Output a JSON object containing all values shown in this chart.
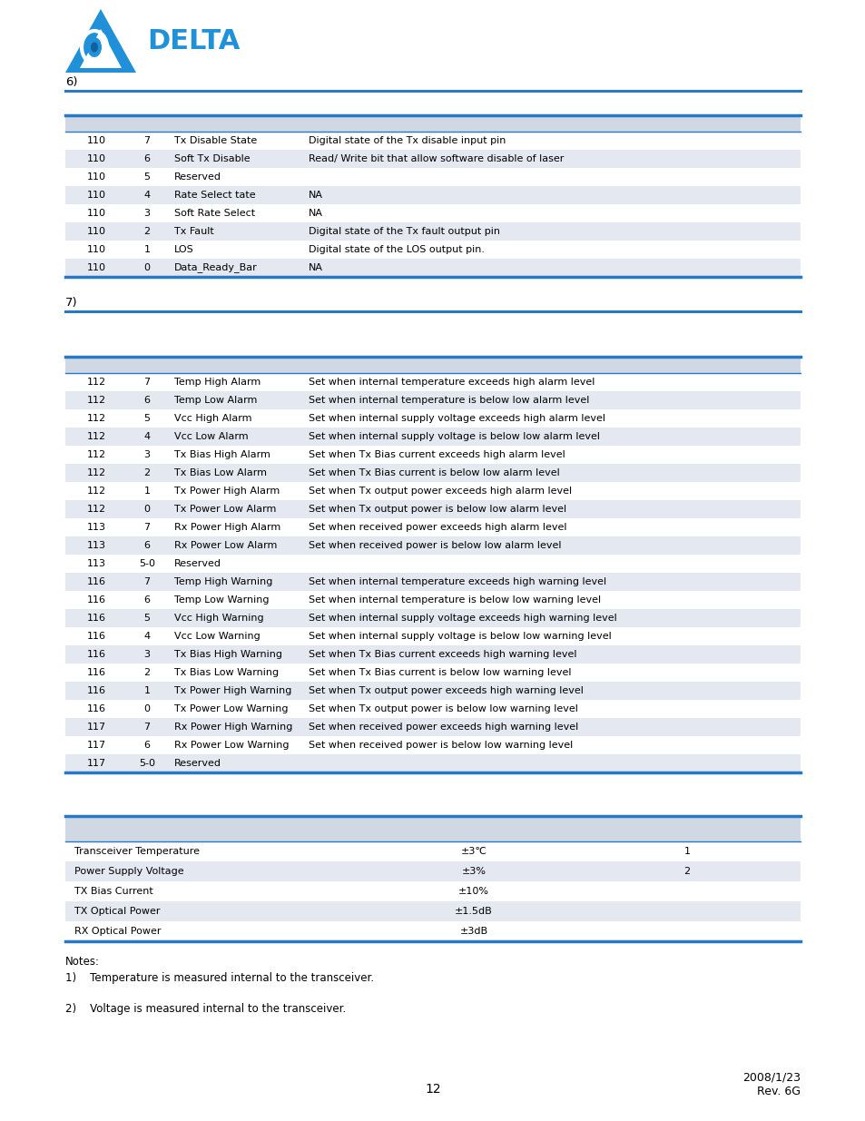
{
  "blue_line_color": "#2878c8",
  "table_header_bg": "#d0d8e4",
  "table_row_alt_bg": "#e4e8f0",
  "table_row_white": "#ffffff",
  "table_border_color": "#2878c8",
  "delta_blue": "#2090d8",
  "table1_rows": [
    [
      "110",
      "7",
      "Tx Disable State",
      "Digital state of the Tx disable input pin"
    ],
    [
      "110",
      "6",
      "Soft Tx Disable",
      "Read/ Write bit that allow software disable of laser"
    ],
    [
      "110",
      "5",
      "Reserved",
      ""
    ],
    [
      "110",
      "4",
      "Rate Select tate",
      "NA"
    ],
    [
      "110",
      "3",
      "Soft Rate Select",
      "NA"
    ],
    [
      "110",
      "2",
      "Tx Fault",
      "Digital state of the Tx fault output pin"
    ],
    [
      "110",
      "1",
      "LOS",
      "Digital state of the LOS output pin."
    ],
    [
      "110",
      "0",
      "Data_Ready_Bar",
      "NA"
    ]
  ],
  "table2_rows": [
    [
      "112",
      "7",
      "Temp High Alarm",
      "Set when internal temperature exceeds high alarm level"
    ],
    [
      "112",
      "6",
      "Temp Low Alarm",
      "Set when internal temperature is below low alarm level"
    ],
    [
      "112",
      "5",
      "Vcc High Alarm",
      "Set when internal supply voltage exceeds high alarm level"
    ],
    [
      "112",
      "4",
      "Vcc Low Alarm",
      "Set when internal supply voltage is below low alarm level"
    ],
    [
      "112",
      "3",
      "Tx Bias High Alarm",
      "Set when Tx Bias current exceeds high alarm level"
    ],
    [
      "112",
      "2",
      "Tx Bias Low Alarm",
      "Set when Tx Bias current is below low alarm level"
    ],
    [
      "112",
      "1",
      "Tx Power High Alarm",
      "Set when Tx output power exceeds high alarm level"
    ],
    [
      "112",
      "0",
      "Tx Power Low Alarm",
      "Set when Tx output power is below low alarm level"
    ],
    [
      "113",
      "7",
      "Rx Power High Alarm",
      "Set when received power exceeds high alarm level"
    ],
    [
      "113",
      "6",
      "Rx Power Low Alarm",
      "Set when received power is below low alarm level"
    ],
    [
      "113",
      "5-0",
      "Reserved",
      ""
    ],
    [
      "116",
      "7",
      "Temp High Warning",
      "Set when internal temperature exceeds high warning level"
    ],
    [
      "116",
      "6",
      "Temp Low Warning",
      "Set when internal temperature is below low warning level"
    ],
    [
      "116",
      "5",
      "Vcc High Warning",
      "Set when internal supply voltage exceeds high warning level"
    ],
    [
      "116",
      "4",
      "Vcc Low Warning",
      "Set when internal supply voltage is below low warning level"
    ],
    [
      "116",
      "3",
      "Tx Bias High Warning",
      "Set when Tx Bias current exceeds high warning level"
    ],
    [
      "116",
      "2",
      "Tx Bias Low Warning",
      "Set when Tx Bias current is below low warning level"
    ],
    [
      "116",
      "1",
      "Tx Power High Warning",
      "Set when Tx output power exceeds high warning level"
    ],
    [
      "116",
      "0",
      "Tx Power Low Warning",
      "Set when Tx output power is below low warning level"
    ],
    [
      "117",
      "7",
      "Rx Power High Warning",
      "Set when received power exceeds high warning level"
    ],
    [
      "117",
      "6",
      "Rx Power Low Warning",
      "Set when received power is below low warning level"
    ],
    [
      "117",
      "5-0",
      "Reserved",
      ""
    ]
  ],
  "table3_rows": [
    [
      "Transceiver Temperature",
      "±3℃",
      "1"
    ],
    [
      "Power Supply Voltage",
      "±3%",
      "2"
    ],
    [
      "TX Bias Current",
      "±10%",
      ""
    ],
    [
      "TX Optical Power",
      "±1.5dB",
      ""
    ],
    [
      "RX Optical Power",
      "±3dB",
      ""
    ]
  ],
  "note1": "1)    Temperature is measured internal to the transceiver.",
  "note2": "2)    Voltage is measured internal to the transceiver.",
  "notes_label": "Notes:",
  "page_num": "12",
  "date_str": "2008/1/23",
  "rev_str": "Rev. 6G",
  "section6": "6)",
  "section7": "7)"
}
